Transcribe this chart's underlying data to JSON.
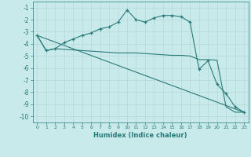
{
  "xlabel": "Humidex (Indice chaleur)",
  "bg_color": "#c8eaea",
  "grid_color": "#b8d8d8",
  "line_color": "#2a7a7a",
  "xlim": [
    -0.5,
    23.5
  ],
  "ylim": [
    -10.5,
    -0.5
  ],
  "xticks": [
    0,
    1,
    2,
    3,
    4,
    5,
    6,
    7,
    8,
    9,
    10,
    11,
    12,
    13,
    14,
    15,
    16,
    17,
    18,
    19,
    20,
    21,
    22,
    23
  ],
  "yticks": [
    -10,
    -9,
    -8,
    -7,
    -6,
    -5,
    -4,
    -3,
    -2,
    -1
  ],
  "line1_x": [
    0,
    1,
    2,
    3,
    4,
    5,
    6,
    7,
    8,
    9,
    10,
    11,
    12,
    13,
    14,
    15,
    16,
    17,
    18,
    19,
    20,
    21,
    22,
    23
  ],
  "line1_y": [
    -3.3,
    -4.55,
    -4.4,
    -3.9,
    -3.6,
    -3.3,
    -3.1,
    -2.75,
    -2.6,
    -2.2,
    -1.2,
    -2.0,
    -2.2,
    -1.85,
    -1.65,
    -1.65,
    -1.75,
    -2.2,
    -6.1,
    -5.4,
    -7.35,
    -8.1,
    -9.2,
    -9.65
  ],
  "line2_x": [
    0,
    1,
    2,
    3,
    4,
    5,
    6,
    7,
    8,
    9,
    10,
    11,
    12,
    13,
    14,
    15,
    16,
    17,
    18,
    19,
    20,
    21,
    22,
    23
  ],
  "line2_y": [
    -3.3,
    -4.55,
    -4.4,
    -4.45,
    -4.5,
    -4.55,
    -4.6,
    -4.65,
    -4.7,
    -4.75,
    -4.75,
    -4.75,
    -4.8,
    -4.85,
    -4.9,
    -4.95,
    -4.95,
    -5.0,
    -5.3,
    -5.3,
    -5.35,
    -9.2,
    -9.65,
    -9.65
  ],
  "line3_x": [
    0,
    23
  ],
  "line3_y": [
    -3.3,
    -9.65
  ]
}
